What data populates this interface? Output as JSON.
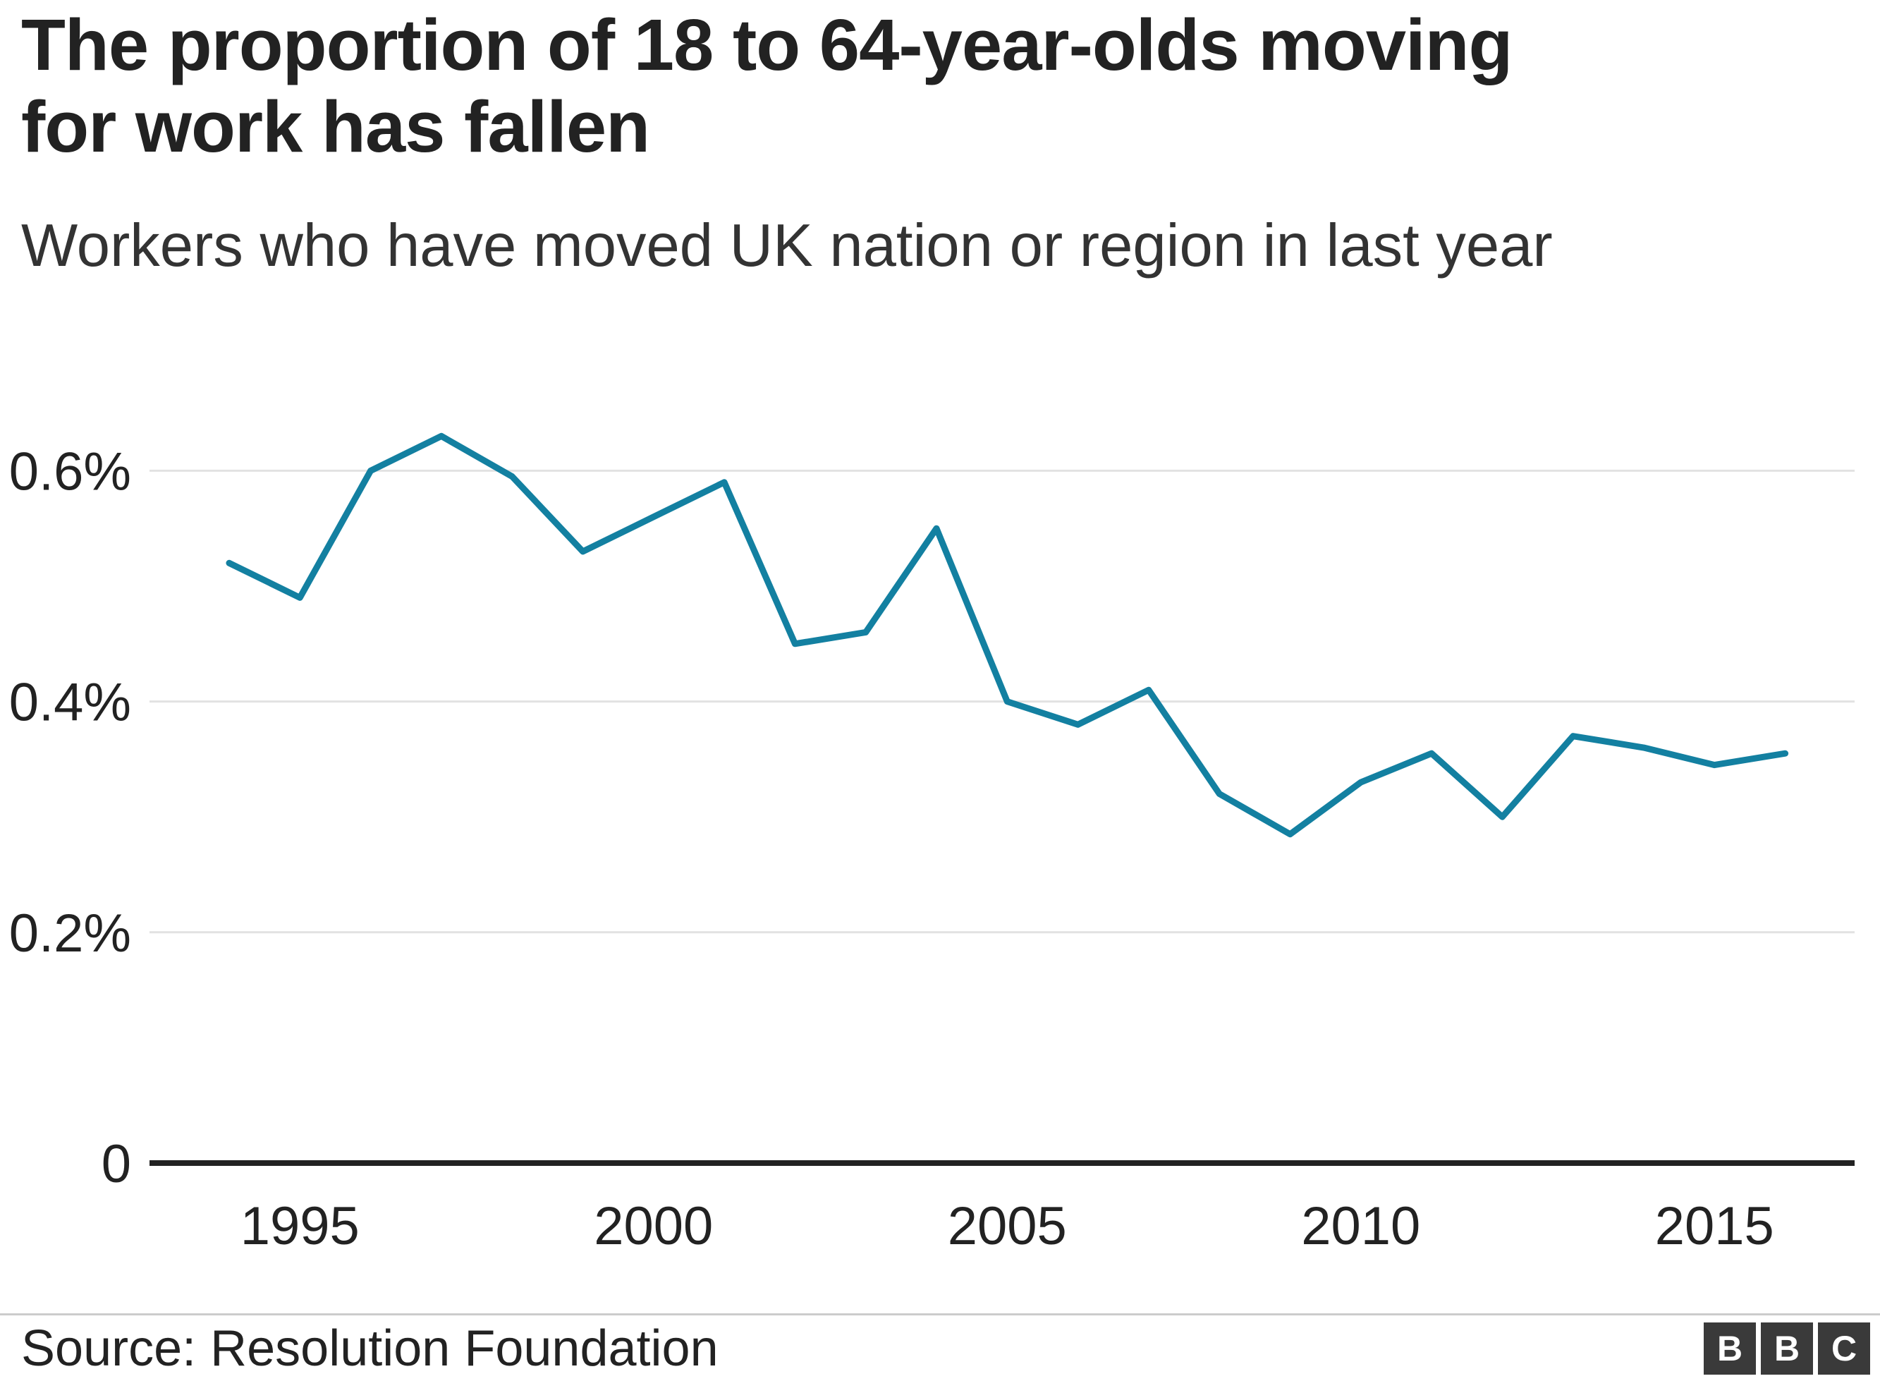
{
  "header": {
    "title": "The proportion of 18 to 64-year-olds moving for work has fallen",
    "subtitle": "Workers who have moved UK nation or region in last year"
  },
  "chart_data": {
    "type": "line",
    "title": "The proportion of 18 to 64-year-olds moving for work has fallen",
    "subtitle": "Workers who have moved UK nation or region in last year",
    "xlabel": "",
    "ylabel": "",
    "x": [
      1994,
      1995,
      1996,
      1997,
      1998,
      1999,
      2000,
      2001,
      2002,
      2003,
      2004,
      2005,
      2006,
      2007,
      2008,
      2009,
      2010,
      2011,
      2012,
      2013,
      2014,
      2015,
      2016
    ],
    "values": [
      0.52,
      0.49,
      0.6,
      0.63,
      0.595,
      0.53,
      0.56,
      0.59,
      0.45,
      0.46,
      0.55,
      0.4,
      0.38,
      0.41,
      0.32,
      0.285,
      0.33,
      0.355,
      0.3,
      0.37,
      0.36,
      0.345,
      0.355
    ],
    "series_name": "Workers who moved UK nation or region in last year (%)",
    "xlim": [
      1994,
      2016
    ],
    "ylim": [
      0,
      0.7
    ],
    "grid": "horizontal",
    "legend": "none",
    "y_ticks": [
      {
        "value": 0,
        "label": "0"
      },
      {
        "value": 0.2,
        "label": "0.2%"
      },
      {
        "value": 0.4,
        "label": "0.4%"
      },
      {
        "value": 0.6,
        "label": "0.6%"
      }
    ],
    "x_ticks": [
      {
        "value": 1995,
        "label": "1995"
      },
      {
        "value": 2000,
        "label": "2000"
      },
      {
        "value": 2005,
        "label": "2005"
      },
      {
        "value": 2010,
        "label": "2010"
      },
      {
        "value": 2015,
        "label": "2015"
      }
    ]
  },
  "footer": {
    "source": "Source: Resolution Foundation",
    "logo_letters": [
      "B",
      "B",
      "C"
    ]
  },
  "colors": {
    "line": "#1380A1",
    "gridline": "#e2e2e2",
    "axis_line": "#222222",
    "axis_label": "#222222",
    "title": "#222222",
    "subtitle": "#333333",
    "logo_bg": "#3a3a3a"
  }
}
